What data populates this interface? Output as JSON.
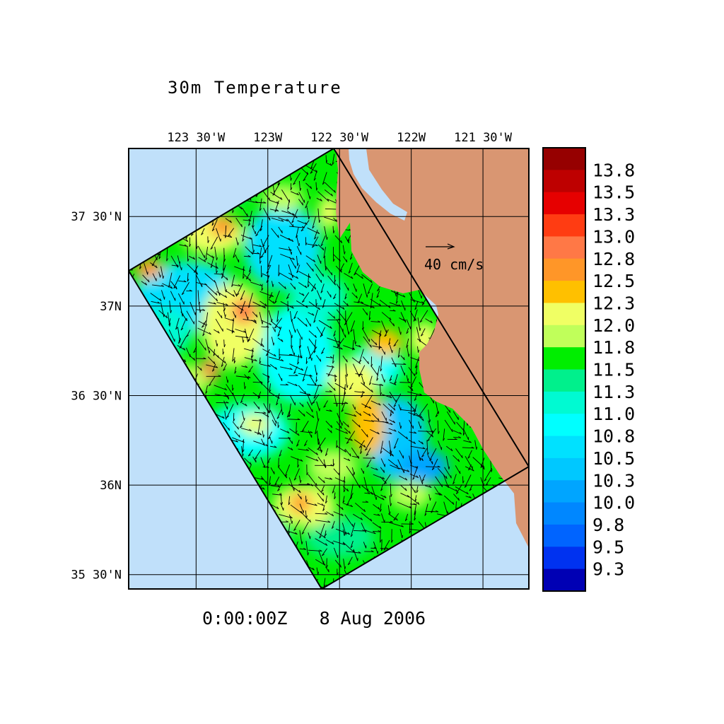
{
  "chart_data": {
    "type": "heatmap",
    "title": "30m Temperature",
    "time_label": "0:00:00Z   8 Aug 2006",
    "vector_scale_label": "40 cm/s",
    "lon_range": [
      -123.97,
      -121.18
    ],
    "lat_range": [
      35.42,
      37.88
    ],
    "lon_ticks": [
      {
        "value": -123.5,
        "label": "123 30'W"
      },
      {
        "value": -123.0,
        "label": "123W"
      },
      {
        "value": -122.5,
        "label": "122 30'W"
      },
      {
        "value": -122.0,
        "label": "122W"
      },
      {
        "value": -121.5,
        "label": "121 30'W"
      }
    ],
    "lat_ticks": [
      {
        "value": 37.5,
        "label": "37 30'N"
      },
      {
        "value": 37.0,
        "label": "37N"
      },
      {
        "value": 36.5,
        "label": "36 30'N"
      },
      {
        "value": 36.0,
        "label": "36N"
      },
      {
        "value": 35.5,
        "label": "35 30'N"
      }
    ],
    "grid": true,
    "colorbar": {
      "placement": "right",
      "labels": [
        "13.8",
        "13.5",
        "13.3",
        "13.0",
        "12.8",
        "12.5",
        "12.3",
        "12.0",
        "11.8",
        "11.5",
        "11.3",
        "11.0",
        "10.8",
        "10.5",
        "10.3",
        "10.0",
        "9.8",
        "9.5",
        "9.3"
      ],
      "colors": [
        "#960000",
        "#be0000",
        "#e60000",
        "#ff3c12",
        "#ff7846",
        "#ff9628",
        "#ffc000",
        "#f0ff64",
        "#c0ff5a",
        "#00ee00",
        "#00f08c",
        "#00fad2",
        "#00ffff",
        "#00e1ff",
        "#00c8ff",
        "#00a5ff",
        "#0087ff",
        "#0064ff",
        "#0032f0",
        "#0000b4"
      ]
    },
    "colors": {
      "ocean": "#c0e0fa",
      "land": "#d99672"
    }
  }
}
